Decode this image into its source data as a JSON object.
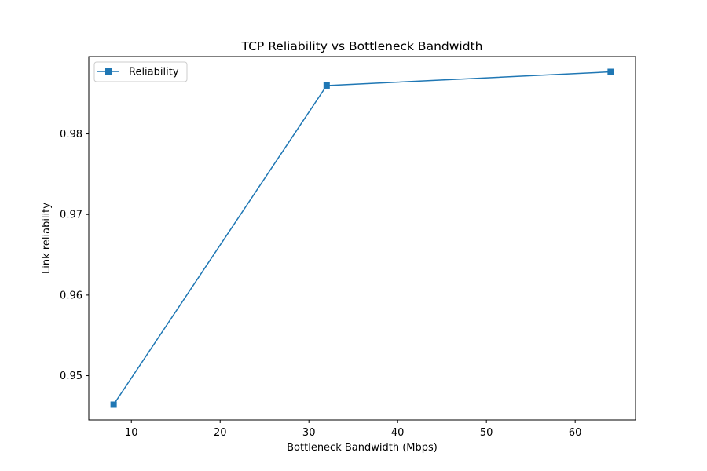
{
  "chart_data": {
    "type": "line",
    "title": "TCP Reliability vs Bottleneck Bandwidth",
    "xlabel": "Bottleneck Bandwidth (Mbps)",
    "ylabel": "Link reliability",
    "xlim": [
      5.2,
      66.8
    ],
    "ylim": [
      0.9445,
      0.9896
    ],
    "xticks": [
      10,
      20,
      30,
      40,
      50,
      60
    ],
    "xtick_labels": [
      "10",
      "20",
      "30",
      "40",
      "50",
      "60"
    ],
    "yticks": [
      0.95,
      0.96,
      0.97,
      0.98
    ],
    "ytick_labels": [
      "0.95",
      "0.96",
      "0.97",
      "0.98"
    ],
    "grid": false,
    "legend": {
      "position": "top-left"
    },
    "series": [
      {
        "name": "Reliability",
        "color": "#1f77b4",
        "marker": "square",
        "x": [
          8,
          32,
          64
        ],
        "y": [
          0.9464,
          0.986,
          0.9877
        ]
      }
    ]
  }
}
